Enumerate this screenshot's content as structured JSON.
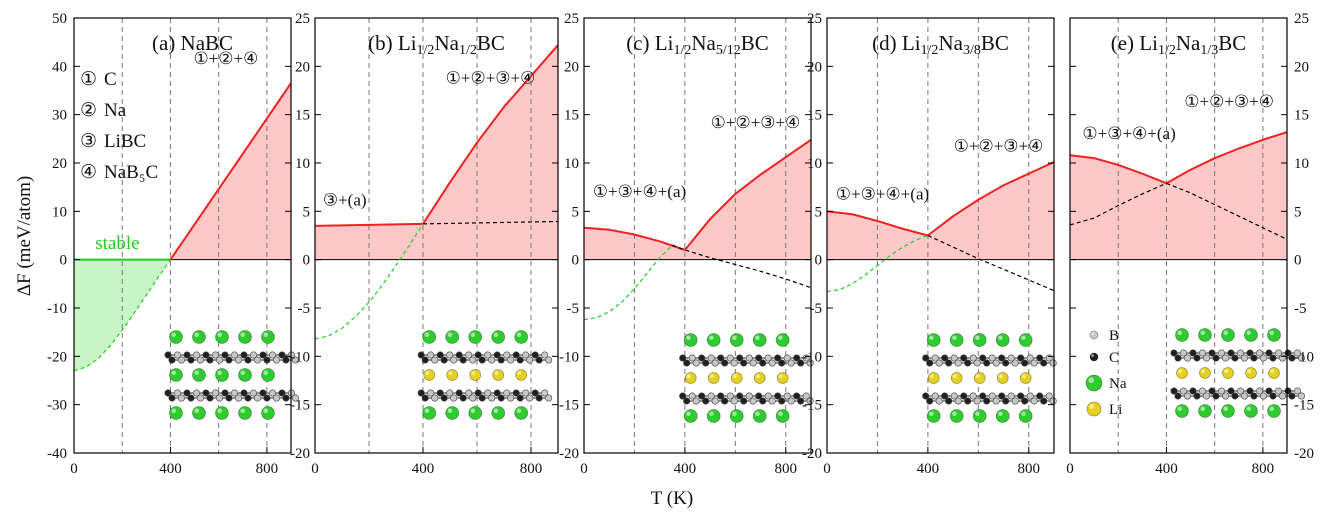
{
  "chart_data": {
    "type": "line",
    "xlabel": "T (K)",
    "ylabel": "ΔF (meV/atom)",
    "colors": {
      "stable_line": "#22cc22",
      "stable_fill": "#c8f5c8",
      "unstable_line": "#ee2222",
      "unstable_fill": "#ffc8c8",
      "metastable_line": "#000000"
    },
    "legend": [
      {
        "sym": "①",
        "label": "C"
      },
      {
        "sym": "②",
        "label": "Na"
      },
      {
        "sym": "③",
        "label": "LiBC"
      },
      {
        "sym": "④",
        "label": "NaB₅C"
      }
    ],
    "atom_legend": [
      {
        "label": "B",
        "color": "#c8c8c8"
      },
      {
        "label": "C",
        "color": "#202020"
      },
      {
        "label": "Na",
        "color": "#2ecc2e"
      },
      {
        "label": "Li",
        "color": "#e6d21e"
      }
    ],
    "panels": [
      {
        "title": "(a) NaBC",
        "ylim": [
          -40,
          50
        ],
        "yticks": [
          -40,
          -30,
          -20,
          -10,
          0,
          10,
          20,
          30,
          40,
          50
        ],
        "xlim": [
          0,
          900
        ],
        "xticks": [
          0,
          400,
          800
        ],
        "annotations": [
          {
            "text": "①+②+④",
            "x": 630,
            "y": 40.5
          },
          {
            "text": "stable",
            "x": 180,
            "y": 2.2
          }
        ],
        "series": [
          {
            "role": "hull",
            "x": [
              0,
              400
            ],
            "y": [
              0,
              0
            ]
          },
          {
            "role": "hull",
            "x": [
              400,
              900
            ],
            "y": [
              0,
              36.5
            ]
          },
          {
            "role": "metastable",
            "x": [
              0,
              50,
              100,
              150,
              200,
              250,
              300,
              350,
              400
            ],
            "y": [
              -23,
              -22.2,
              -20.5,
              -17.8,
              -14.6,
              -11.0,
              -7.3,
              -3.6,
              0
            ]
          }
        ]
      },
      {
        "title": "(b) Li1/2Na1/2BC",
        "ylim": [
          -20,
          25
        ],
        "yticks": [
          -20,
          -15,
          -10,
          -5,
          0,
          5,
          10,
          15,
          20,
          25
        ],
        "xlim": [
          0,
          900
        ],
        "xticks": [
          0,
          400,
          800
        ],
        "annotations": [
          {
            "text": "①+②+③+④",
            "x": 650,
            "y": 18.2
          },
          {
            "text": "③+(a)",
            "x": 110,
            "y": 5.6
          }
        ],
        "series": [
          {
            "role": "hull",
            "x": [
              0,
              100,
              200,
              300,
              400
            ],
            "y": [
              3.5,
              3.55,
              3.6,
              3.65,
              3.7
            ]
          },
          {
            "role": "hull",
            "x": [
              400,
              500,
              600,
              700,
              800,
              900
            ],
            "y": [
              3.7,
              8.0,
              12.1,
              15.8,
              19.0,
              22.2
            ]
          },
          {
            "role": "metastable",
            "x": [
              400,
              500,
              600,
              700,
              800,
              900
            ],
            "y": [
              3.7,
              3.75,
              3.8,
              3.85,
              3.9,
              3.95
            ]
          },
          {
            "role": "metastable",
            "x": [
              0,
              50,
              100,
              150,
              200,
              250,
              300,
              350,
              400
            ],
            "y": [
              -8.2,
              -7.9,
              -7.1,
              -5.9,
              -4.4,
              -2.6,
              -0.6,
              1.5,
              3.7
            ]
          }
        ]
      },
      {
        "title": "(c) Li1/2Na5/12BC",
        "ylim": [
          -20,
          25
        ],
        "yticks": [
          -20,
          -15,
          -10,
          -5,
          0,
          5,
          10,
          15,
          20,
          25
        ],
        "xlim": [
          0,
          900
        ],
        "xticks": [
          0,
          400,
          800
        ],
        "annotations": [
          {
            "text": "①+②+③+④",
            "x": 680,
            "y": 13.6
          },
          {
            "text": "①+③+④+(a)",
            "x": 220,
            "y": 6.5
          }
        ],
        "series": [
          {
            "role": "hull",
            "x": [
              0,
              100,
              200,
              300,
              400
            ],
            "y": [
              3.3,
              3.1,
              2.6,
              1.9,
              1.0
            ]
          },
          {
            "role": "hull",
            "x": [
              400,
              500,
              600,
              700,
              800,
              900
            ],
            "y": [
              1.0,
              4.2,
              6.8,
              8.8,
              10.6,
              12.4
            ]
          },
          {
            "role": "metastable",
            "x": [
              350,
              400,
              500,
              600,
              700,
              800,
              900
            ],
            "y": [
              1.5,
              1.0,
              0.2,
              -0.5,
              -1.2,
              -2.0,
              -2.9
            ]
          },
          {
            "role": "metastable",
            "x": [
              0,
              50,
              100,
              150,
              200,
              250,
              300,
              350
            ],
            "y": [
              -6.2,
              -6.0,
              -5.4,
              -4.4,
              -3.0,
              -1.4,
              0.2,
              1.5
            ]
          }
        ]
      },
      {
        "title": "(d) Li1/2Na3/8BC",
        "ylim": [
          -20,
          25
        ],
        "yticks": [
          -20,
          -15,
          -10,
          -5,
          0,
          5,
          10,
          15,
          20,
          25
        ],
        "xlim": [
          0,
          900
        ],
        "xticks": [
          0,
          400,
          800
        ],
        "annotations": [
          {
            "text": "①+②+③+④",
            "x": 680,
            "y": 11.2
          },
          {
            "text": "①+③+④+(a)",
            "x": 220,
            "y": 6.2
          }
        ],
        "series": [
          {
            "role": "hull",
            "x": [
              0,
              100,
              200,
              300,
              400
            ],
            "y": [
              5.0,
              4.7,
              4.0,
              3.2,
              2.5
            ]
          },
          {
            "role": "hull",
            "x": [
              400,
              500,
              600,
              700,
              800,
              900
            ],
            "y": [
              2.5,
              4.5,
              6.2,
              7.7,
              8.9,
              10.1
            ]
          },
          {
            "role": "metastable",
            "x": [
              400,
              500,
              600,
              700,
              800,
              900
            ],
            "y": [
              2.5,
              1.3,
              0.1,
              -1.0,
              -2.1,
              -3.2
            ]
          },
          {
            "role": "metastable",
            "x": [
              0,
              50,
              100,
              150,
              200,
              250,
              300,
              350,
              400
            ],
            "y": [
              -3.3,
              -3.1,
              -2.5,
              -1.6,
              -0.6,
              0.4,
              1.3,
              2.0,
              2.5
            ]
          }
        ]
      },
      {
        "title": "(e) Li1/2Na1/3BC",
        "ylim": [
          -20,
          25
        ],
        "yticks": [
          -20,
          -15,
          -10,
          -5,
          0,
          5,
          10,
          15,
          20,
          25
        ],
        "xlim": [
          0,
          900
        ],
        "xticks": [
          0,
          400,
          800
        ],
        "annotations": [
          {
            "text": "①+②+③+④",
            "x": 660,
            "y": 15.8
          },
          {
            "text": "①+③+④+(a)",
            "x": 245,
            "y": 12.5
          }
        ],
        "series": [
          {
            "role": "hull",
            "x": [
              0,
              100,
              200,
              300,
              400
            ],
            "y": [
              10.8,
              10.5,
              9.8,
              8.9,
              7.9
            ]
          },
          {
            "role": "hull",
            "x": [
              400,
              500,
              600,
              700,
              800,
              900
            ],
            "y": [
              7.9,
              9.3,
              10.5,
              11.5,
              12.4,
              13.2
            ]
          },
          {
            "role": "metastable",
            "x": [
              0,
              100,
              200,
              300,
              400
            ],
            "y": [
              3.6,
              4.3,
              5.6,
              6.8,
              7.9
            ]
          },
          {
            "role": "metastable",
            "x": [
              400,
              500,
              600,
              700,
              800,
              900
            ],
            "y": [
              7.9,
              6.9,
              5.7,
              4.5,
              3.3,
              2.1
            ]
          }
        ]
      }
    ]
  }
}
